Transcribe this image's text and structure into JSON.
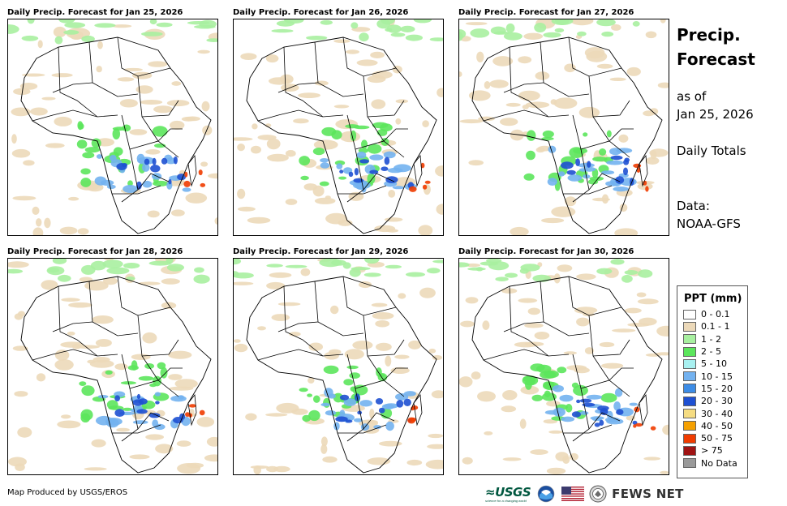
{
  "panels": [
    {
      "title": "Daily Precip. Forecast for Jan 25, 2026"
    },
    {
      "title": "Daily Precip. Forecast for Jan 26, 2026"
    },
    {
      "title": "Daily Precip. Forecast for Jan 27, 2026"
    },
    {
      "title": "Daily Precip. Forecast for Jan 28, 2026"
    },
    {
      "title": "Daily Precip. Forecast for Jan 29, 2026"
    },
    {
      "title": "Daily Precip. Forecast for Jan 30, 2026"
    }
  ],
  "sidebar": {
    "title_line1": "Precip.",
    "title_line2": "Forecast",
    "asof_line1": "as of",
    "asof_line2": "Jan 25, 2026",
    "totals": "Daily Totals",
    "data_line1": "Data:",
    "data_line2": "NOAA-GFS"
  },
  "legend": {
    "title": "PPT (mm)",
    "items": [
      {
        "label": "0 - 0.1",
        "color": "#ffffff"
      },
      {
        "label": "0.1 - 1",
        "color": "#ecd9b9"
      },
      {
        "label": "1 - 2",
        "color": "#a8f0a0"
      },
      {
        "label": "2 - 5",
        "color": "#5ce65c"
      },
      {
        "label": "5 - 10",
        "color": "#a8f0f0"
      },
      {
        "label": "10 - 15",
        "color": "#73b2f0"
      },
      {
        "label": "15 - 20",
        "color": "#3c8ce6"
      },
      {
        "label": "20 - 30",
        "color": "#1e50d2"
      },
      {
        "label": "30 - 40",
        "color": "#f5dc82"
      },
      {
        "label": "40 - 50",
        "color": "#f5a000"
      },
      {
        "label": "50 - 75",
        "color": "#f03c00"
      },
      {
        "label": "> 75",
        "color": "#a01414"
      },
      {
        "label": "No Data",
        "color": "#9a9a9a"
      }
    ]
  },
  "footer": {
    "credit": "Map Produced by USGS/EROS"
  },
  "logos": {
    "usgs": "≈USGS",
    "usgs_tagline": "science for a changing world",
    "fews": "FEWS NET"
  }
}
